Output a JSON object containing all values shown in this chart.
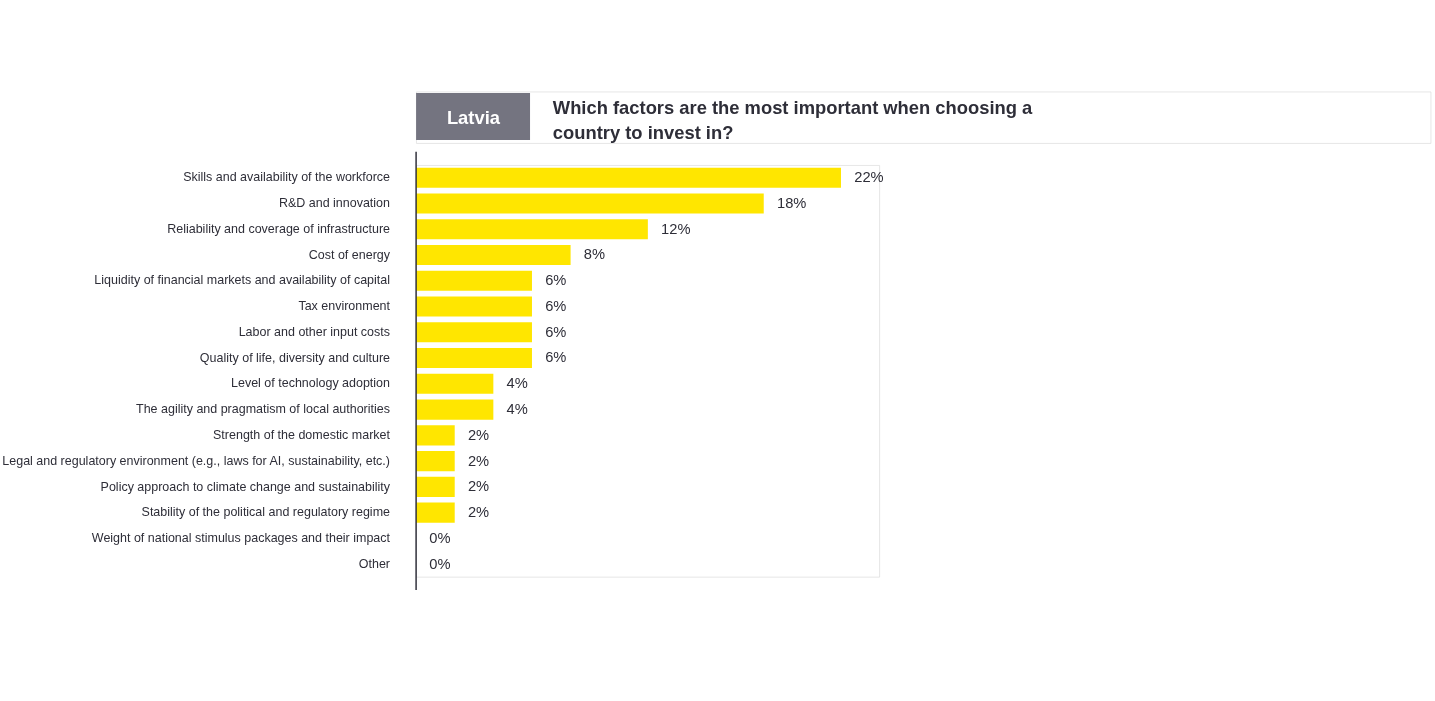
{
  "chart_data": {
    "type": "bar",
    "orientation": "horizontal",
    "title": "Which factors are the most important when choosing a country to invest in?",
    "annotations": [
      "Latvia"
    ],
    "categories": [
      "Skills and availability of the workforce",
      "R&D and innovation",
      "Reliability and coverage of infrastructure",
      "Cost of energy",
      "Liquidity of financial markets and availability of capital",
      "Tax environment",
      "Labor and other input costs",
      "Quality of life, diversity and culture",
      "Level of technology adoption",
      "The agility and pragmatism of local authorities",
      "Strength of the domestic market",
      "Legal and regulatory environment (e.g., laws for AI, sustainability, etc.)",
      "Policy approach to climate change and sustainability",
      "Stability of the political and regulatory regime",
      "Weight of national stimulus packages and their impact",
      "Other"
    ],
    "values": [
      22,
      18,
      12,
      8,
      6,
      6,
      6,
      6,
      4,
      4,
      2,
      2,
      2,
      2,
      0,
      0
    ],
    "value_labels": [
      "22%",
      "18%",
      "12%",
      "8%",
      "6%",
      "6%",
      "6%",
      "6%",
      "4%",
      "4%",
      "2%",
      "2%",
      "2%",
      "2%",
      "0%",
      "0%"
    ],
    "color": "#ffe600",
    "grid": false
  }
}
